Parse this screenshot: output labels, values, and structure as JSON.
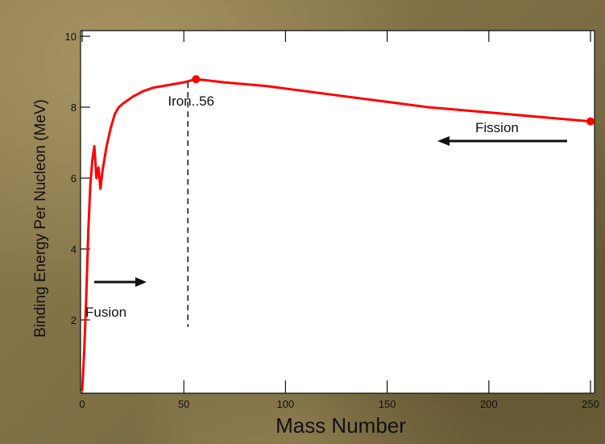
{
  "chart_data": {
    "type": "line",
    "title": "",
    "xlabel": "Mass Number",
    "ylabel": "Binding Energy Per Nucleon (MeV)",
    "xlim": [
      0,
      250
    ],
    "ylim": [
      0,
      10
    ],
    "x_ticks": [
      "0",
      "50",
      "100",
      "150",
      "200",
      "250"
    ],
    "y_ticks": [
      "2",
      "4",
      "6",
      "8",
      "10"
    ],
    "grid": false,
    "series": [
      {
        "color": "#ff0000",
        "x": [
          0,
          1,
          2,
          3,
          4,
          5,
          6,
          7,
          8,
          9,
          10,
          12,
          14,
          16,
          18,
          20,
          25,
          30,
          35,
          40,
          45,
          50,
          56,
          70,
          90,
          110,
          130,
          150,
          170,
          190,
          210,
          230,
          250
        ],
        "y": [
          0,
          1.1,
          2.6,
          4.5,
          5.8,
          6.5,
          6.9,
          6.0,
          6.3,
          5.7,
          6.2,
          6.9,
          7.4,
          7.8,
          8.0,
          8.1,
          8.3,
          8.45,
          8.55,
          8.6,
          8.65,
          8.7,
          8.79,
          8.7,
          8.6,
          8.45,
          8.3,
          8.15,
          8.0,
          7.9,
          7.8,
          7.7,
          7.6
        ]
      }
    ],
    "markers": [
      {
        "x": 56,
        "y": 8.79,
        "label": "Iron..56"
      },
      {
        "x": 250,
        "y": 7.6
      }
    ],
    "reference_line": {
      "x": 52,
      "y_from": 1.8,
      "y_to": 8.7
    },
    "annotations": [
      {
        "text": "Fusion",
        "arrow_direction": "right"
      },
      {
        "text": "Fission",
        "arrow_direction": "left"
      }
    ]
  }
}
